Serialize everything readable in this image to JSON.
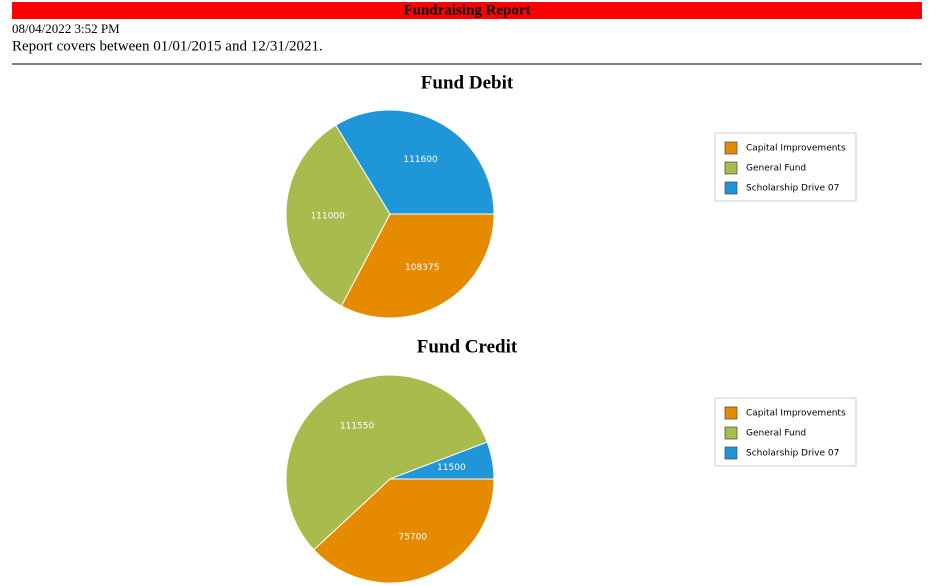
{
  "header": {
    "title": "Fundraising Report",
    "timestamp": "08/04/2022 3:52 PM",
    "coverage": "Report covers between 01/01/2015 and 12/31/2021."
  },
  "chart_data": [
    {
      "type": "pie",
      "title": "Fund Debit",
      "categories": [
        "Capital Improvements",
        "General Fund",
        "Scholarship Drive 07"
      ],
      "values": [
        108375,
        111000,
        111600
      ],
      "colors": [
        "#e68a00",
        "#a8bc4d",
        "#1e96d8"
      ],
      "legend": "right"
    },
    {
      "type": "pie",
      "title": "Fund Credit",
      "categories": [
        "Capital Improvements",
        "General Fund",
        "Scholarship Drive 07"
      ],
      "values": [
        75700,
        111550,
        11500
      ],
      "colors": [
        "#e68a00",
        "#a8bc4d",
        "#1e96d8"
      ],
      "legend": "right"
    }
  ]
}
